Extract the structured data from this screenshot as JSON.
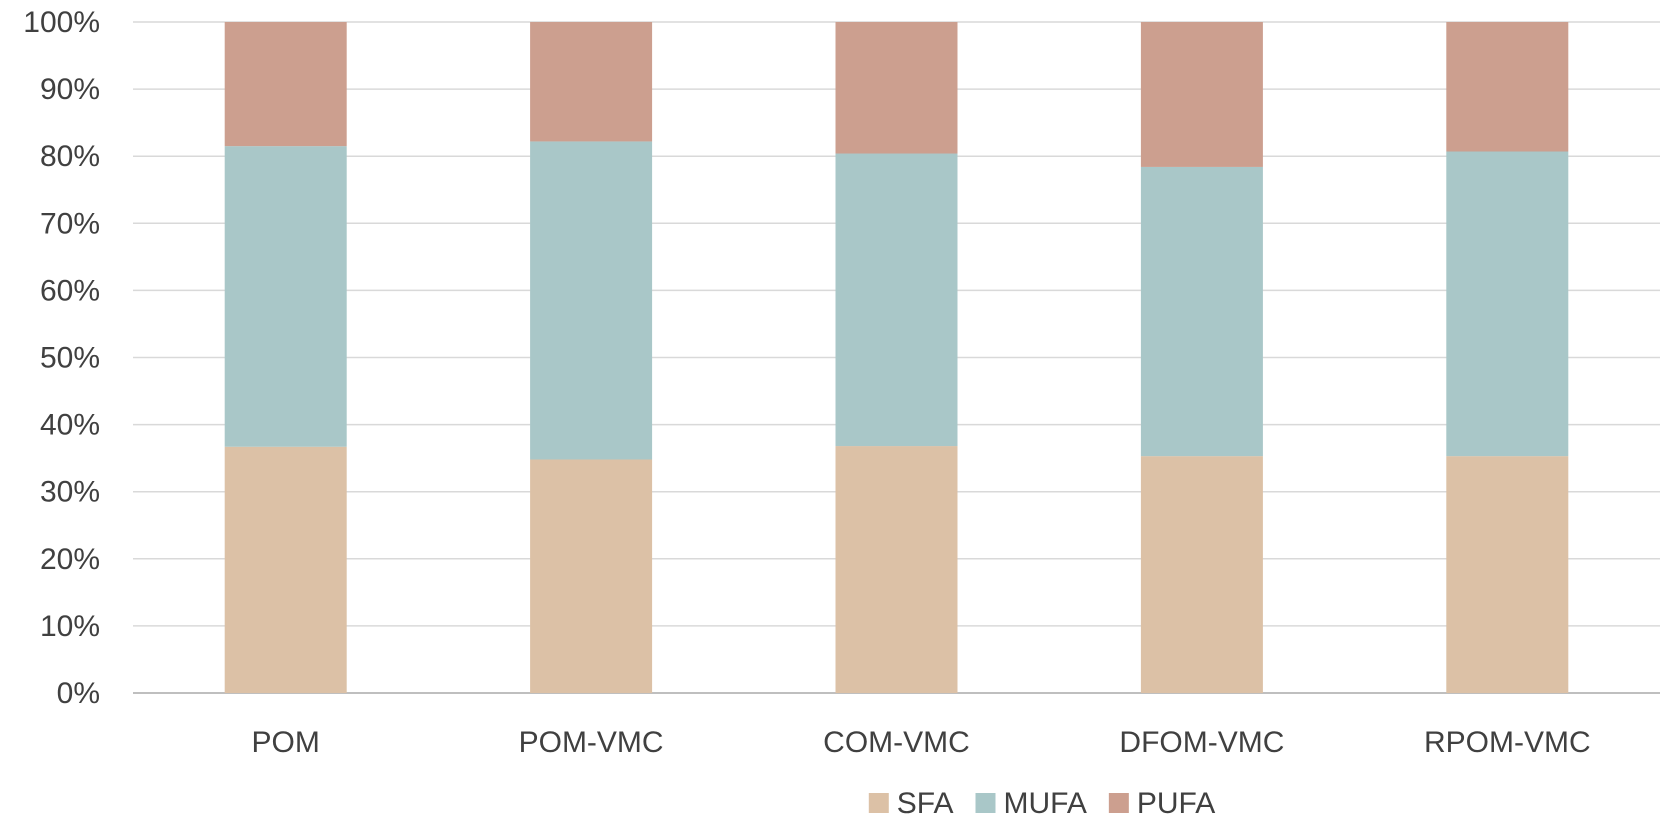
{
  "chart_data": {
    "type": "bar",
    "stacked": "percent",
    "title": "",
    "xlabel": "",
    "ylabel": "",
    "ylim": [
      0,
      100
    ],
    "y_ticks": [
      "0%",
      "10%",
      "20%",
      "30%",
      "40%",
      "50%",
      "60%",
      "70%",
      "80%",
      "90%",
      "100%"
    ],
    "grid": true,
    "legend_position": "bottom",
    "categories": [
      "POM",
      "POM-VMC",
      "COM-VMC",
      "DFOM-VMC",
      "RPOM-VMC"
    ],
    "series": [
      {
        "name": "SFA",
        "color": "#dcc1a6",
        "values": [
          36.7,
          34.8,
          36.8,
          35.3,
          35.3
        ]
      },
      {
        "name": "MUFA",
        "color": "#a9c7c8",
        "values": [
          44.8,
          47.4,
          43.6,
          43.1,
          45.4
        ]
      },
      {
        "name": "PUFA",
        "color": "#cc9f8f",
        "values": [
          18.5,
          17.8,
          19.6,
          21.6,
          19.3
        ]
      }
    ]
  }
}
